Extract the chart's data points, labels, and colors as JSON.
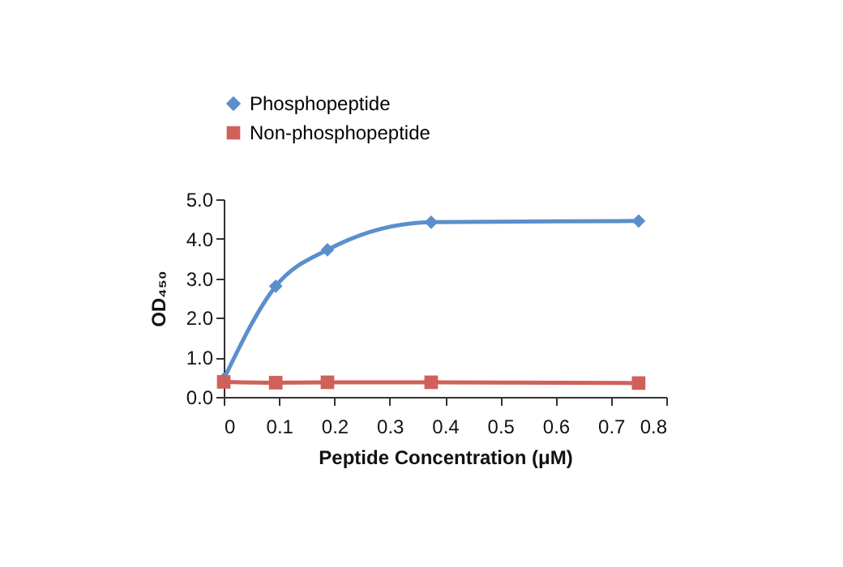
{
  "chart_data": {
    "type": "line",
    "xlabel": "Peptide Concentration (μM)",
    "ylabel": "OD₄₅₀",
    "x": [
      0,
      0.094,
      0.1875,
      0.375,
      0.75
    ],
    "series": [
      {
        "name": "Phosphopeptide",
        "color": "#5b8fcc",
        "marker": "diamond",
        "values": [
          0.45,
          2.8,
          3.72,
          4.42,
          4.45
        ]
      },
      {
        "name": "Non-phosphopeptide",
        "color": "#d0605a",
        "marker": "square",
        "values": [
          0.38,
          0.36,
          0.37,
          0.37,
          0.35
        ]
      }
    ],
    "xlim": [
      0,
      0.8
    ],
    "xticks": [
      {
        "value": 0,
        "label": "0"
      },
      0.1,
      0.2,
      0.3,
      0.4,
      0.5,
      0.6,
      0.7,
      0.8
    ],
    "ylim": [
      0,
      5
    ],
    "yticks": [
      {
        "value": 0,
        "label": "0.0"
      },
      {
        "value": 1,
        "label": "1.0"
      },
      {
        "value": 2,
        "label": "2.0"
      },
      {
        "value": 3,
        "label": "3.0"
      },
      {
        "value": 4,
        "label": "4.0"
      },
      {
        "value": 5,
        "label": "5.0"
      }
    ],
    "grid": false,
    "legend": "top left",
    "line_style": "solid"
  }
}
